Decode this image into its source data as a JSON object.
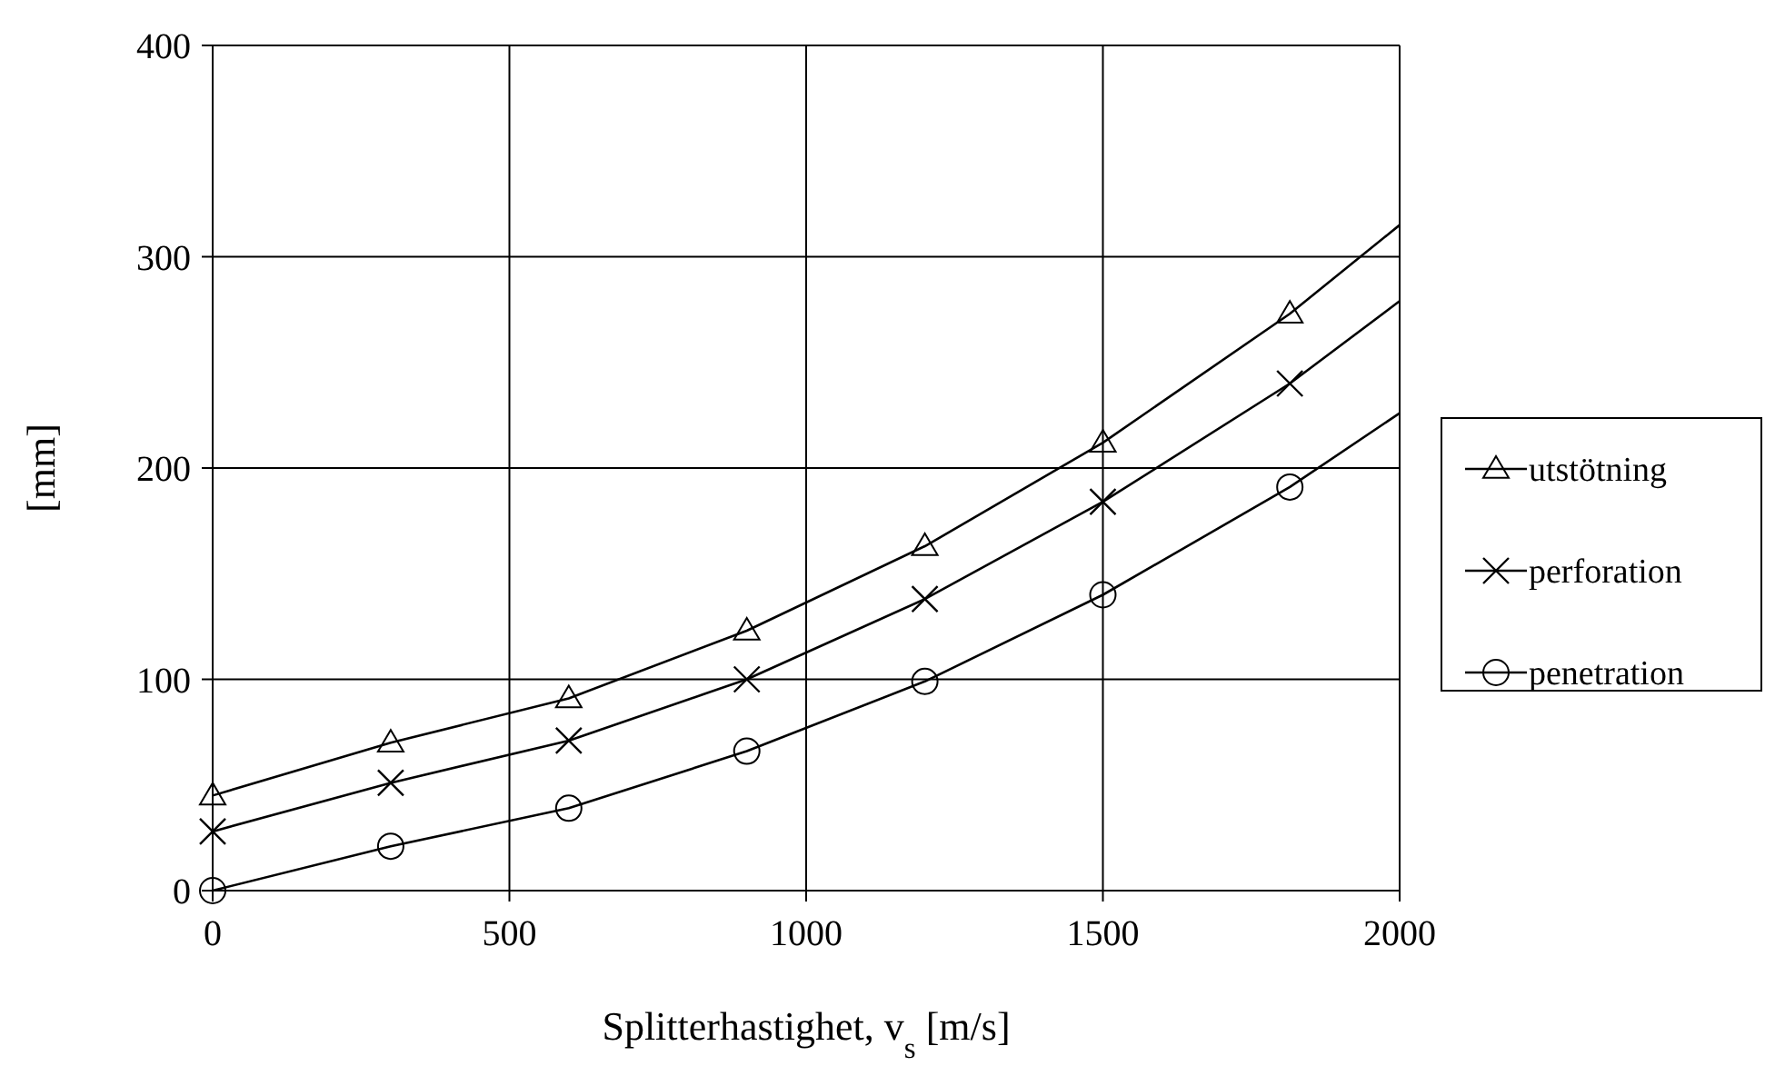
{
  "chart_data": {
    "type": "line",
    "xlabel": "Splitterhastighet, v$_{s}$ [m/s]",
    "ylabel": "[mm]",
    "xlim": [
      0,
      2000
    ],
    "xticks": [
      0,
      500,
      1000,
      1500,
      2000
    ],
    "ylim": [
      0,
      400
    ],
    "yticks": [
      0,
      100,
      200,
      300,
      400
    ],
    "grid": true,
    "legend": "right",
    "series": [
      {
        "color": "#000000",
        "marker": "none",
        "x": [
          0,
          300,
          600,
          900,
          1200,
          1500,
          1815,
          2000
        ],
        "values": [
          45,
          70,
          91,
          123,
          163,
          212,
          273,
          315
        ]
      },
      {
        "color": "#000000",
        "marker": "none",
        "x": [
          0,
          300,
          600,
          900,
          1200,
          1500,
          1815,
          2000
        ],
        "values": [
          28,
          51,
          71,
          100,
          138,
          184,
          240,
          279
        ]
      },
      {
        "color": "#000000",
        "marker": "none",
        "x": [
          0,
          300,
          600,
          900,
          1200,
          1500,
          1815,
          2000
        ],
        "values": [
          0,
          21,
          39,
          66,
          99,
          140,
          191,
          226
        ]
      },
      {
        "type": "scatter",
        "name": "utstötning",
        "color": "#000000",
        "marker": "triangle",
        "x": [
          0,
          300,
          600,
          900,
          1200,
          1500,
          1815
        ],
        "values": [
          45,
          70,
          91,
          123,
          163,
          212,
          273
        ]
      },
      {
        "type": "scatter",
        "name": "perforation",
        "color": "#000000",
        "marker": "cross",
        "x": [
          0,
          300,
          600,
          900,
          1200,
          1500,
          1815
        ],
        "values": [
          28,
          51,
          71,
          100,
          138,
          184,
          240
        ]
      },
      {
        "type": "scatter",
        "name": "penetration",
        "color": "#000000",
        "marker": "circle",
        "x": [
          0,
          300,
          600,
          900,
          1200,
          1500,
          1815
        ],
        "values": [
          0,
          21,
          39,
          66,
          99,
          140,
          191
        ]
      }
    ]
  }
}
